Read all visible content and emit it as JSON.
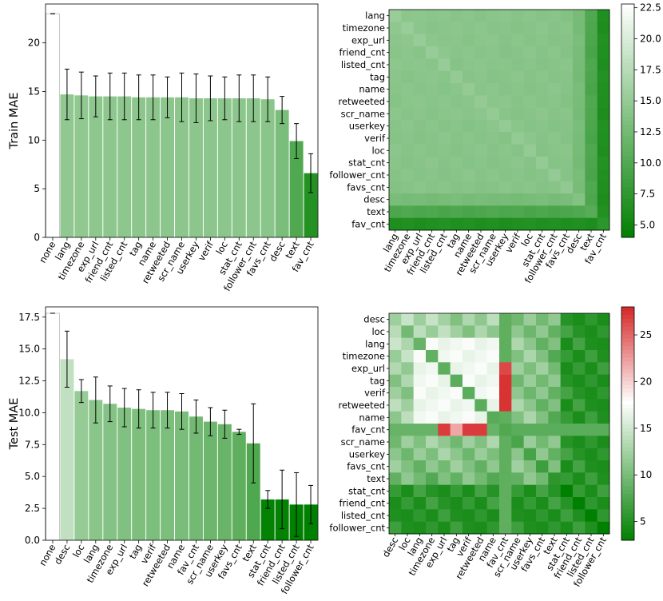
{
  "chart_data": [
    {
      "type": "bar",
      "id": "train_bar",
      "ylabel": "Train MAE",
      "ylim": [
        0,
        24
      ],
      "yticks": [
        0,
        5,
        10,
        15,
        20
      ],
      "categories": [
        "none",
        "lang",
        "timezone",
        "exp_url",
        "friend_cnt",
        "listed_cnt",
        "tag",
        "name",
        "retweeted",
        "scr_name",
        "userkey",
        "verif",
        "loc",
        "stat_cnt",
        "follower_cnt",
        "favs_cnt",
        "desc",
        "text",
        "fav_cnt"
      ],
      "values": [
        23.0,
        14.7,
        14.6,
        14.5,
        14.5,
        14.5,
        14.4,
        14.4,
        14.4,
        14.4,
        14.3,
        14.3,
        14.3,
        14.3,
        14.3,
        14.2,
        13.1,
        9.9,
        6.6
      ],
      "errors": [
        0.0,
        2.6,
        2.4,
        2.1,
        2.4,
        2.4,
        2.3,
        2.3,
        2.1,
        2.5,
        2.5,
        2.3,
        2.2,
        2.4,
        2.4,
        2.3,
        1.4,
        1.8,
        2.0
      ]
    },
    {
      "type": "heatmap",
      "id": "train_heat",
      "labels": [
        "lang",
        "timezone",
        "exp_url",
        "friend_cnt",
        "listed_cnt",
        "tag",
        "name",
        "retweeted",
        "scr_name",
        "userkey",
        "verif",
        "loc",
        "stat_cnt",
        "follower_cnt",
        "favs_cnt",
        "desc",
        "text",
        "fav_cnt"
      ],
      "xlabels": [
        "lang",
        "timezone",
        "exp_url",
        "friend_cnt",
        "listed_cnt",
        "tag",
        "name",
        "retweeted",
        "scr_name",
        "userkey",
        "verif",
        "loc",
        "stat_cnt",
        "follower_cnt",
        "favs_cnt",
        "desc",
        "text",
        "fav_cnt"
      ],
      "diag": [
        14.7,
        14.6,
        14.5,
        14.5,
        14.5,
        14.4,
        14.4,
        14.4,
        14.4,
        14.3,
        14.3,
        14.3,
        14.3,
        14.3,
        14.2,
        13.1,
        9.9,
        6.6
      ],
      "colorbar": {
        "min": 4.0,
        "max": 22.8,
        "ticks": [
          5.0,
          7.5,
          10.0,
          12.5,
          15.0,
          17.5,
          20.0,
          22.5
        ],
        "tick_labels": [
          "5.0",
          "7.5",
          "10.0",
          "12.5",
          "15.0",
          "17.5",
          "20.0",
          "22.5"
        ],
        "colors": [
          "#008000",
          "#ffffff"
        ]
      }
    },
    {
      "type": "bar",
      "id": "test_bar",
      "ylabel": "Test MAE",
      "ylim": [
        0,
        18.3
      ],
      "yticks": [
        0.0,
        2.5,
        5.0,
        7.5,
        10.0,
        12.5,
        15.0,
        17.5
      ],
      "categories": [
        "none",
        "desc",
        "loc",
        "lang",
        "timezone",
        "exp_url",
        "tag",
        "verif",
        "retweeted",
        "name",
        "fav_cnt",
        "scr_name",
        "userkey",
        "favs_cnt",
        "text",
        "stat_cnt",
        "friend_cnt",
        "listed_cnt",
        "follower_cnt"
      ],
      "values": [
        17.8,
        14.2,
        11.7,
        11.0,
        10.7,
        10.4,
        10.3,
        10.2,
        10.2,
        10.1,
        9.7,
        9.3,
        9.1,
        8.5,
        7.6,
        3.2,
        3.2,
        2.8,
        2.8
      ],
      "errors": [
        0.0,
        2.2,
        0.9,
        1.8,
        1.4,
        1.5,
        1.5,
        1.4,
        1.4,
        1.4,
        1.3,
        1.1,
        1.1,
        0.2,
        3.1,
        0.7,
        2.3,
        2.5,
        1.5
      ]
    },
    {
      "type": "heatmap",
      "id": "test_heat",
      "labels": [
        "desc",
        "loc",
        "lang",
        "timezone",
        "exp_url",
        "tag",
        "verif",
        "retweeted",
        "name",
        "fav_cnt",
        "scr_name",
        "userkey",
        "favs_cnt",
        "text",
        "stat_cnt",
        "friend_cnt",
        "listed_cnt",
        "follower_cnt"
      ],
      "xlabels": [
        "desc",
        "loc",
        "lang",
        "timezone",
        "exp_url",
        "tag",
        "verif",
        "retweeted",
        "name",
        "fav_cnt",
        "scr_name",
        "userkey",
        "favs_cnt",
        "text",
        "stat_cnt",
        "friend_cnt",
        "listed_cnt",
        "follower_cnt"
      ],
      "diag": [
        14.2,
        11.7,
        11.0,
        10.7,
        10.4,
        10.3,
        10.2,
        10.2,
        10.1,
        9.7,
        9.3,
        9.1,
        8.5,
        7.6,
        3.2,
        3.2,
        2.8,
        2.8
      ],
      "fav_cnt_index": 9,
      "exp_url_block": [
        2,
        3,
        4,
        5,
        6,
        7,
        8
      ],
      "colorbar": {
        "min": 3.0,
        "max": 28.0,
        "mid": 17.8,
        "ticks": [
          5,
          10,
          15,
          20,
          25
        ],
        "tick_labels": [
          "5",
          "10",
          "15",
          "20",
          "25"
        ],
        "colors": [
          "#008000",
          "#ffffff",
          "#d62728"
        ]
      }
    }
  ]
}
